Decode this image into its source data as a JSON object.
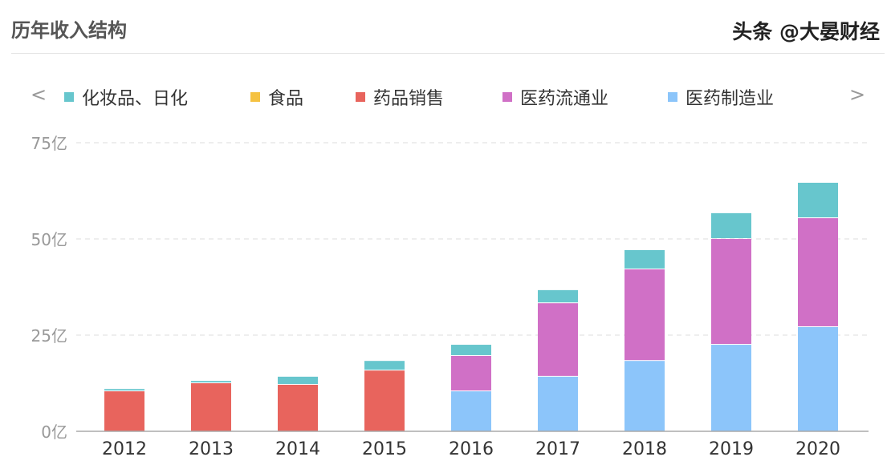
{
  "header": {
    "title": "历年收入结构"
  },
  "legend_nav": {
    "prev": "<",
    "next": ">"
  },
  "watermark": "头条 @大晏财经",
  "chart_data": {
    "type": "bar",
    "stacked": true,
    "categories": [
      "2012",
      "2013",
      "2014",
      "2015",
      "2016",
      "2017",
      "2018",
      "2019",
      "2020"
    ],
    "ylim": [
      0,
      75
    ],
    "yticks": [
      {
        "value": 0,
        "label": "0亿"
      },
      {
        "value": 25,
        "label": "25亿"
      },
      {
        "value": 50,
        "label": "50亿"
      },
      {
        "value": 75,
        "label": "75亿"
      }
    ],
    "grid": true,
    "legend_position": "top",
    "series": [
      {
        "name": "医药制造业",
        "color": "#8cc5fa",
        "values": [
          0,
          0,
          0,
          0,
          10.6,
          14.4,
          18.5,
          22.7,
          27.3
        ]
      },
      {
        "name": "药品销售",
        "color": "#e8645d",
        "values": [
          10.6,
          12.7,
          12.3,
          16.0,
          0,
          0,
          0,
          0,
          0
        ]
      },
      {
        "name": "医药流通业",
        "color": "#d070c6",
        "values": [
          0,
          0,
          0,
          0,
          9.2,
          19.1,
          23.8,
          27.5,
          28.3
        ]
      },
      {
        "name": "食品",
        "color": "#f5c242",
        "values": [
          0,
          0,
          0,
          0,
          0,
          0,
          0,
          0,
          0
        ]
      },
      {
        "name": "化妆品、日化",
        "color": "#67c6cd",
        "values": [
          0.6,
          0.6,
          2.1,
          2.5,
          2.9,
          3.4,
          5.0,
          6.7,
          9.2
        ]
      }
    ],
    "legend_order": [
      "化妆品、日化",
      "食品",
      "药品销售",
      "医药流通业",
      "医药制造业"
    ]
  }
}
